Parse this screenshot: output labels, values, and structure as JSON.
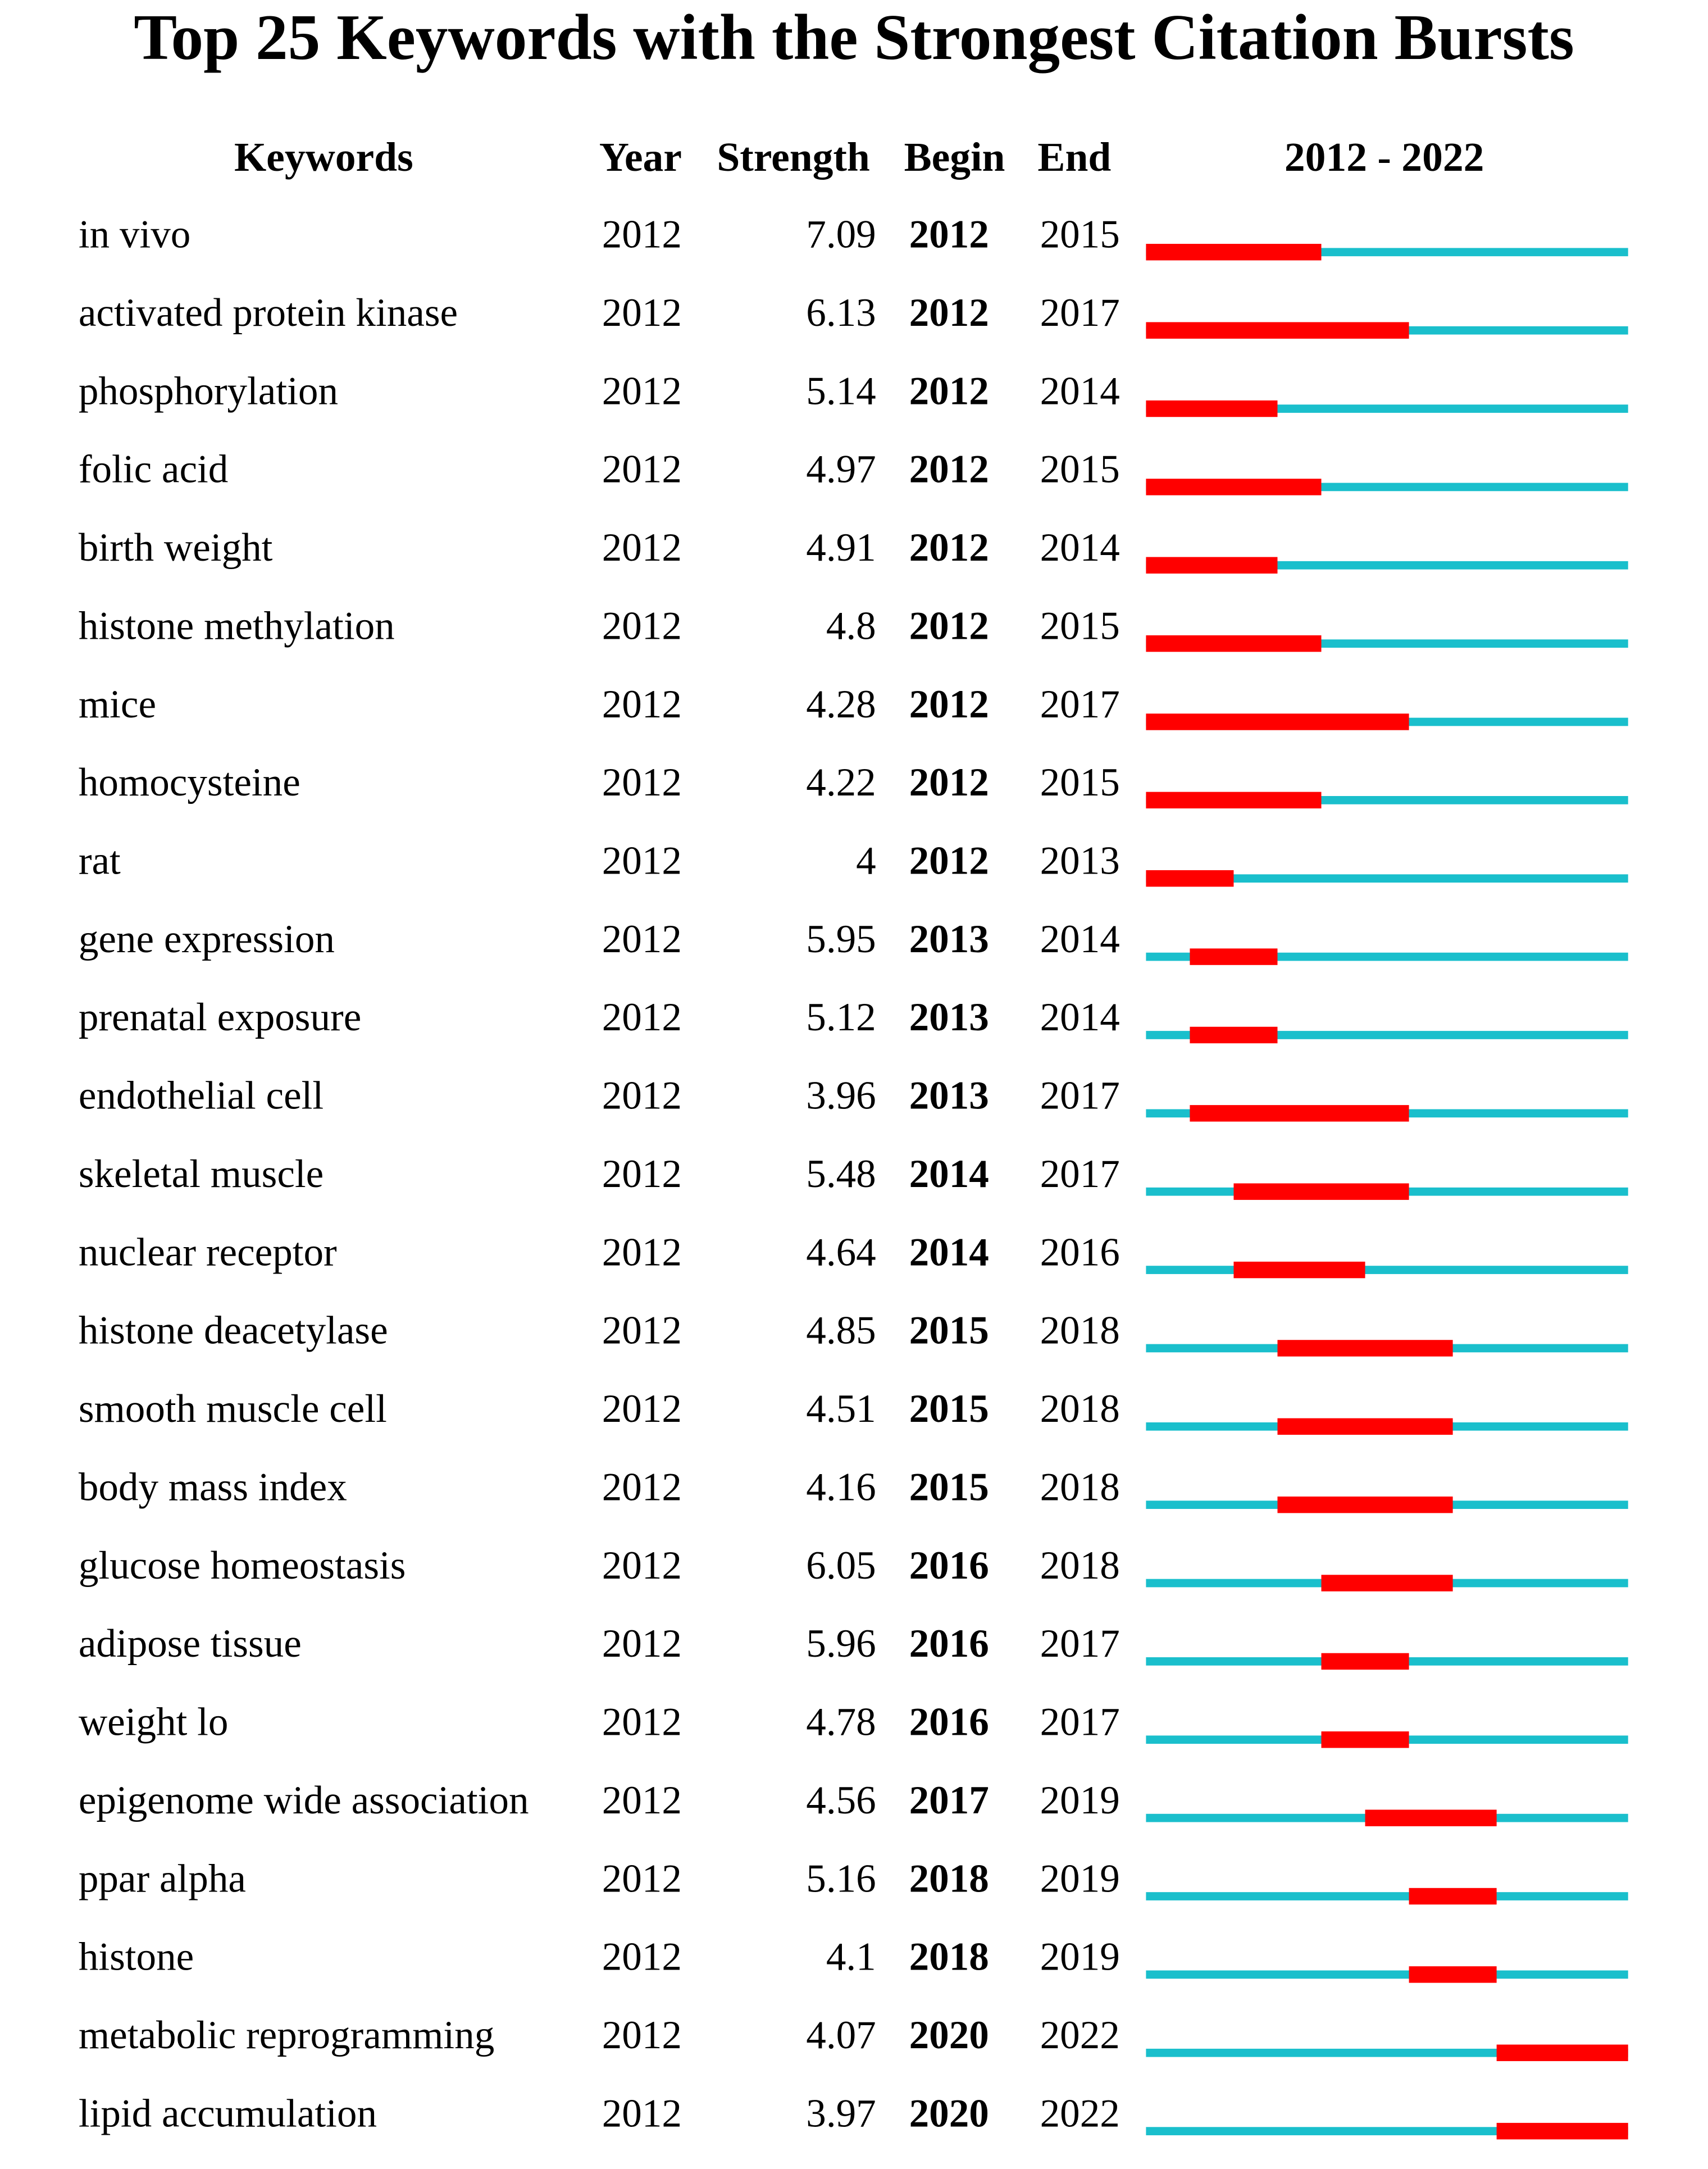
{
  "title": "Top 25 Keywords with the Strongest Citation Bursts",
  "headers": {
    "keyword": "Keywords",
    "year": "Year",
    "strength": "Strength",
    "begin": "Begin",
    "end": "End"
  },
  "timeline": {
    "label": "2012 - 2022",
    "start": 2012,
    "end": 2022
  },
  "rows": [
    {
      "keyword": "in vivo",
      "year": 2012,
      "strength": 7.09,
      "begin": 2012,
      "end": 2015
    },
    {
      "keyword": "activated protein kinase",
      "year": 2012,
      "strength": 6.13,
      "begin": 2012,
      "end": 2017
    },
    {
      "keyword": "phosphorylation",
      "year": 2012,
      "strength": 5.14,
      "begin": 2012,
      "end": 2014
    },
    {
      "keyword": "folic acid",
      "year": 2012,
      "strength": 4.97,
      "begin": 2012,
      "end": 2015
    },
    {
      "keyword": "birth weight",
      "year": 2012,
      "strength": 4.91,
      "begin": 2012,
      "end": 2014
    },
    {
      "keyword": "histone methylation",
      "year": 2012,
      "strength": 4.8,
      "begin": 2012,
      "end": 2015
    },
    {
      "keyword": "mice",
      "year": 2012,
      "strength": 4.28,
      "begin": 2012,
      "end": 2017
    },
    {
      "keyword": "homocysteine",
      "year": 2012,
      "strength": 4.22,
      "begin": 2012,
      "end": 2015
    },
    {
      "keyword": "rat",
      "year": 2012,
      "strength": 4,
      "begin": 2012,
      "end": 2013
    },
    {
      "keyword": "gene expression",
      "year": 2012,
      "strength": 5.95,
      "begin": 2013,
      "end": 2014
    },
    {
      "keyword": "prenatal exposure",
      "year": 2012,
      "strength": 5.12,
      "begin": 2013,
      "end": 2014
    },
    {
      "keyword": "endothelial cell",
      "year": 2012,
      "strength": 3.96,
      "begin": 2013,
      "end": 2017
    },
    {
      "keyword": "skeletal muscle",
      "year": 2012,
      "strength": 5.48,
      "begin": 2014,
      "end": 2017
    },
    {
      "keyword": "nuclear receptor",
      "year": 2012,
      "strength": 4.64,
      "begin": 2014,
      "end": 2016
    },
    {
      "keyword": "histone deacetylase",
      "year": 2012,
      "strength": 4.85,
      "begin": 2015,
      "end": 2018
    },
    {
      "keyword": "smooth muscle cell",
      "year": 2012,
      "strength": 4.51,
      "begin": 2015,
      "end": 2018
    },
    {
      "keyword": "body mass index",
      "year": 2012,
      "strength": 4.16,
      "begin": 2015,
      "end": 2018
    },
    {
      "keyword": "glucose homeostasis",
      "year": 2012,
      "strength": 6.05,
      "begin": 2016,
      "end": 2018
    },
    {
      "keyword": "adipose tissue",
      "year": 2012,
      "strength": 5.96,
      "begin": 2016,
      "end": 2017
    },
    {
      "keyword": "weight lo",
      "year": 2012,
      "strength": 4.78,
      "begin": 2016,
      "end": 2017
    },
    {
      "keyword": "epigenome wide association",
      "year": 2012,
      "strength": 4.56,
      "begin": 2017,
      "end": 2019
    },
    {
      "keyword": "ppar alpha",
      "year": 2012,
      "strength": 5.16,
      "begin": 2018,
      "end": 2019
    },
    {
      "keyword": "histone",
      "year": 2012,
      "strength": 4.1,
      "begin": 2018,
      "end": 2019
    },
    {
      "keyword": "metabolic reprogramming",
      "year": 2012,
      "strength": 4.07,
      "begin": 2020,
      "end": 2022
    },
    {
      "keyword": "lipid accumulation",
      "year": 2012,
      "strength": 3.97,
      "begin": 2020,
      "end": 2022
    }
  ]
}
